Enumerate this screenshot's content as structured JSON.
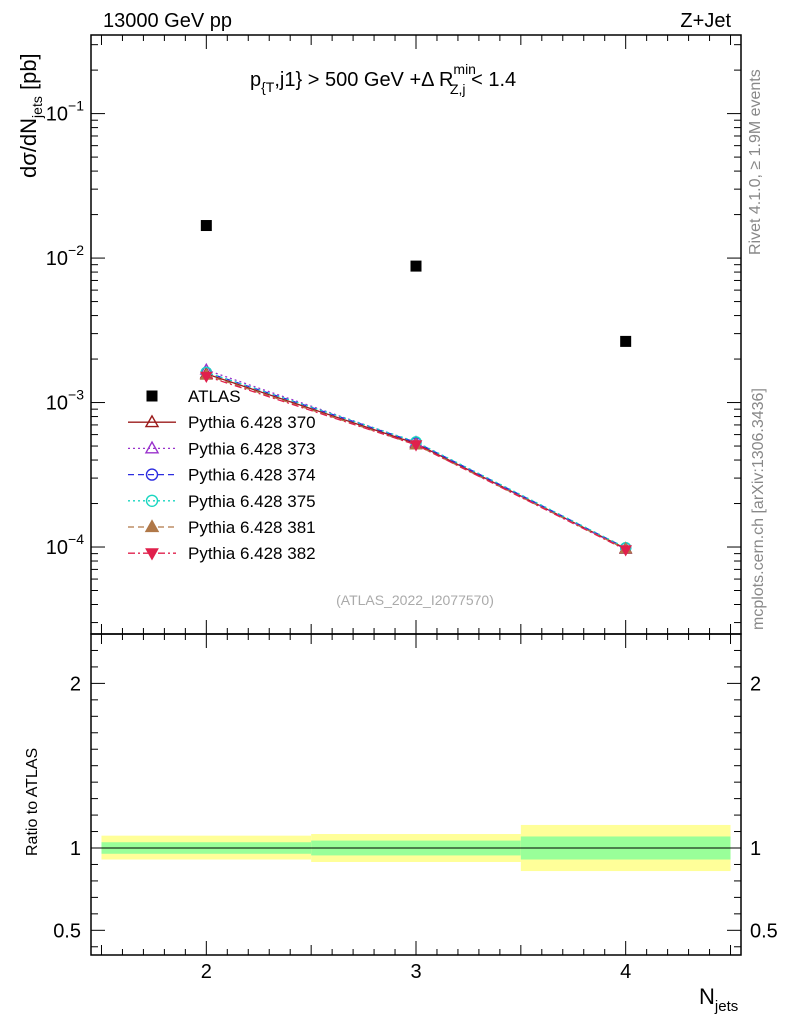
{
  "header": {
    "left_label": "13000 GeV pp",
    "right_label": "Z+Jet"
  },
  "side_labels": {
    "rivet": "Rivet 4.1.0, ≥ 1.9M events",
    "mcplots": "mcplots.cern.ch [arXiv:1306.3436]"
  },
  "chart_data": [
    {
      "type": "scatter",
      "title_parts": {
        "p": "p",
        "t_sub": "{T",
        "mid": ",j1} > 500 GeV +Δ R",
        "r_sup": "min",
        "r_sub": "Z,j",
        "tail": " < 1.4"
      },
      "ylabel": {
        "main": "dσ/dN",
        "sub": "jets",
        "unit": " [pb]"
      },
      "xlabel": {
        "main": "N",
        "sub": "jets"
      },
      "yscale": "log",
      "xlim": [
        1.45,
        4.55
      ],
      "ylim": [
        2.5e-05,
        0.35
      ],
      "x_ticks": [
        2,
        3,
        4
      ],
      "y_ticks": [
        {
          "value": 0.0001,
          "base": "10",
          "exp": "−4"
        },
        {
          "value": 0.001,
          "base": "10",
          "exp": "−3"
        },
        {
          "value": 0.01,
          "base": "10",
          "exp": "−2"
        },
        {
          "value": 0.1,
          "base": "10",
          "exp": "−1"
        }
      ],
      "watermark": "(ATLAS_2022_I2077570)",
      "legend_position": "middle-left",
      "x": [
        2,
        3,
        4
      ],
      "series": [
        {
          "name": "ATLAS",
          "values": [
            0.0168,
            0.0088,
            0.00265
          ],
          "color": "#000000",
          "marker": "square-filled",
          "dash": "none"
        },
        {
          "name": "Pythia 6.428 370",
          "values": [
            0.00158,
            0.00052,
            9.75e-05
          ],
          "color": "#9b1b1b",
          "marker": "triangle-open",
          "dash": "solid"
        },
        {
          "name": "Pythia 6.428 373",
          "values": [
            0.00168,
            0.00053,
            9.65e-05
          ],
          "color": "#9932cc",
          "marker": "triangle-open",
          "dash": "dotted"
        },
        {
          "name": "Pythia 6.428 374",
          "values": [
            0.00162,
            0.00053,
            9.85e-05
          ],
          "color": "#2d2de0",
          "marker": "circle-open",
          "dash": "dashed"
        },
        {
          "name": "Pythia 6.428 375",
          "values": [
            0.00162,
            0.000535,
            9.9e-05
          ],
          "color": "#19d6c0",
          "marker": "circle-open",
          "dash": "dotted"
        },
        {
          "name": "Pythia 6.428 381",
          "values": [
            0.00155,
            0.00051,
            9.68e-05
          ],
          "color": "#b07848",
          "marker": "triangle-filled",
          "dash": "dashed"
        },
        {
          "name": "Pythia 6.428 382",
          "values": [
            0.00152,
            0.00051,
            9.58e-05
          ],
          "color": "#e0204c",
          "marker": "triangle-down-filled",
          "dash": "dashdot"
        }
      ]
    },
    {
      "type": "area",
      "ylabel": "Ratio to ATLAS",
      "ylim": [
        0.35,
        2.3
      ],
      "y_ticks": [
        {
          "value": 0.5,
          "label": "0.5"
        },
        {
          "value": 1,
          "label": "1"
        },
        {
          "value": 2,
          "label": "2"
        }
      ],
      "bins": [
        {
          "xlow": 1.5,
          "xhigh": 2.5,
          "stat_low": 0.965,
          "stat_high": 1.035,
          "total_low": 0.93,
          "total_high": 1.075
        },
        {
          "xlow": 2.5,
          "xhigh": 3.5,
          "stat_low": 0.955,
          "stat_high": 1.045,
          "total_low": 0.915,
          "total_high": 1.085
        },
        {
          "xlow": 3.5,
          "xhigh": 4.5,
          "stat_low": 0.93,
          "stat_high": 1.07,
          "total_low": 0.86,
          "total_high": 1.14
        }
      ],
      "band_colors": {
        "stat": "#99ff99",
        "total": "#ffff99"
      },
      "reference": 1
    }
  ]
}
